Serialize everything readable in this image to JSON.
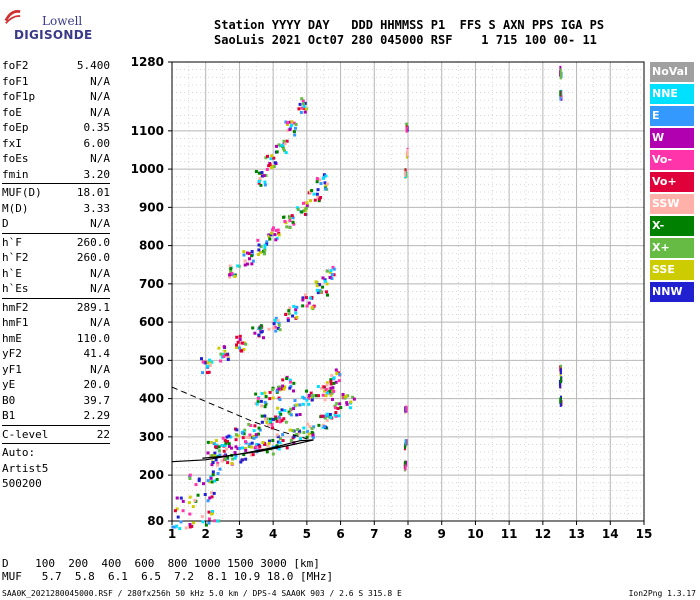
{
  "logo": {
    "top": "Lowell",
    "bottom": "DIGISONDE"
  },
  "header": {
    "line1": "Station YYYY DAY   DDD HHMMSS P1  FFS S AXN PPS IGA PS",
    "line2": "SaoLuis 2021 Oct07 280 045000 RSF    1 715 100 00- 11"
  },
  "params": [
    {
      "k": "foF2",
      "v": "5.400"
    },
    {
      "k": "foF1",
      "v": "N/A"
    },
    {
      "k": "foF1p",
      "v": "N/A"
    },
    {
      "k": "foE",
      "v": "N/A"
    },
    {
      "k": "foEp",
      "v": "0.35"
    },
    {
      "k": "fxI",
      "v": "6.00"
    },
    {
      "k": "foEs",
      "v": "N/A"
    },
    {
      "k": "fmin",
      "v": "3.20"
    },
    {
      "sep": true
    },
    {
      "k": "MUF(D)",
      "v": "18.01"
    },
    {
      "k": "M(D)",
      "v": "3.33"
    },
    {
      "k": "D",
      "v": "N/A"
    },
    {
      "sep": true
    },
    {
      "k": "h`F",
      "v": "260.0"
    },
    {
      "k": "h`F2",
      "v": "260.0"
    },
    {
      "k": "h`E",
      "v": "N/A"
    },
    {
      "k": "h`Es",
      "v": "N/A"
    },
    {
      "sep": true
    },
    {
      "k": "hmF2",
      "v": "289.1"
    },
    {
      "k": "hmF1",
      "v": "N/A"
    },
    {
      "k": "hmE",
      "v": "110.0"
    },
    {
      "k": "yF2",
      "v": "41.4"
    },
    {
      "k": "yF1",
      "v": "N/A"
    },
    {
      "k": "yE",
      "v": "20.0"
    },
    {
      "k": "B0",
      "v": "39.7"
    },
    {
      "k": "B1",
      "v": "2.29"
    },
    {
      "sep": true
    },
    {
      "k": "C-level",
      "v": "22"
    },
    {
      "sep": true
    },
    {
      "k": "Auto:",
      "v": ""
    },
    {
      "k": "Artist5",
      "v": ""
    },
    {
      "k": "500200",
      "v": ""
    }
  ],
  "legend": [
    {
      "label": "NoVal",
      "color": "#a0a0a0"
    },
    {
      "label": "NNE",
      "color": "#00e0ff"
    },
    {
      "label": "E",
      "color": "#3399ff"
    },
    {
      "label": "W",
      "color": "#b000b0"
    },
    {
      "label": "Vo-",
      "color": "#ff33aa"
    },
    {
      "label": "Vo+",
      "color": "#e0003a"
    },
    {
      "label": "SSW",
      "color": "#ffb0a8"
    },
    {
      "label": "X-",
      "color": "#008000"
    },
    {
      "label": "X+",
      "color": "#66bb44"
    },
    {
      "label": "SSE",
      "color": "#cccc00"
    },
    {
      "label": "NNW",
      "color": "#2020d0"
    }
  ],
  "footer": {
    "line1": "D    100  200  400  600  800 1000 1500 3000 [km]",
    "line2": "MUF   5.7  5.8  6.1  6.5  7.2  8.1 10.9 18.0 [MHz]"
  },
  "file_line": "SAA0K_2021280045000.RSF / 280fx256h 50 kHz 5.0 km / DPS-4 SAA0K 903 / 2.6 S 315.8 E",
  "version": "Ion2Png 1.3.17",
  "chart_data": {
    "type": "scatter",
    "title": "",
    "xlabel": "",
    "ylabel": "",
    "xlim": [
      1,
      15
    ],
    "ylim": [
      80,
      1280
    ],
    "x_ticks": [
      1,
      2,
      3,
      4,
      5,
      6,
      7,
      8,
      9,
      10,
      11,
      12,
      13,
      14,
      15
    ],
    "y_ticks": [
      80,
      200,
      300,
      400,
      500,
      600,
      700,
      800,
      900,
      1000,
      1100,
      1280
    ],
    "grid": true,
    "legend_position": "right",
    "series": [
      {
        "pts": [
          [
            2.2,
            245
          ],
          [
            2.6,
            250
          ],
          [
            3.0,
            258
          ],
          [
            3.4,
            268
          ],
          [
            3.8,
            278
          ],
          [
            4.2,
            292
          ],
          [
            4.6,
            305
          ],
          [
            5.0,
            322
          ],
          [
            5.4,
            345
          ],
          [
            5.8,
            372
          ],
          [
            6.2,
            395
          ],
          [
            5.6,
            420
          ],
          [
            5.8,
            460
          ]
        ]
      },
      {
        "pts": [
          [
            2.2,
            275
          ],
          [
            2.6,
            290
          ],
          [
            3.0,
            305
          ],
          [
            3.4,
            320
          ],
          [
            3.8,
            340
          ],
          [
            4.2,
            360
          ],
          [
            4.6,
            380
          ],
          [
            5.0,
            405
          ],
          [
            5.4,
            430
          ],
          [
            3.6,
            400
          ],
          [
            4.0,
            420
          ],
          [
            4.4,
            440
          ]
        ]
      },
      {
        "pts": [
          [
            2.0,
            490
          ],
          [
            2.5,
            520
          ],
          [
            3.0,
            548
          ],
          [
            3.5,
            575
          ],
          [
            4.0,
            600
          ],
          [
            4.5,
            628
          ],
          [
            5.0,
            658
          ],
          [
            5.4,
            690
          ],
          [
            5.6,
            730
          ]
        ]
      },
      {
        "pts": [
          [
            2.8,
            740
          ],
          [
            3.2,
            770
          ],
          [
            3.6,
            800
          ],
          [
            4.0,
            832
          ],
          [
            4.4,
            865
          ],
          [
            4.8,
            900
          ],
          [
            5.2,
            940
          ],
          [
            5.4,
            970
          ]
        ]
      },
      {
        "pts": [
          [
            3.6,
            980
          ],
          [
            3.9,
            1020
          ],
          [
            4.2,
            1060
          ],
          [
            4.5,
            1110
          ],
          [
            4.8,
            1170
          ]
        ]
      },
      {
        "pts": [
          [
            1.1,
            82
          ],
          [
            1.5,
            85
          ],
          [
            2.0,
            90
          ],
          [
            2.2,
            100
          ],
          [
            1.2,
            130
          ],
          [
            1.6,
            135
          ],
          [
            2.1,
            140
          ],
          [
            1.6,
            195
          ],
          [
            2.0,
            200
          ],
          [
            2.3,
            200
          ]
        ]
      },
      {
        "pts": [
          [
            7.9,
            1000
          ],
          [
            7.95,
            1050
          ],
          [
            7.95,
            1120
          ],
          [
            7.9,
            380
          ],
          [
            7.9,
            290
          ],
          [
            7.9,
            230
          ]
        ]
      },
      {
        "pts": [
          [
            12.5,
            1260
          ],
          [
            12.5,
            1200
          ],
          [
            12.5,
            480
          ],
          [
            12.5,
            450
          ],
          [
            12.5,
            400
          ]
        ]
      }
    ]
  }
}
